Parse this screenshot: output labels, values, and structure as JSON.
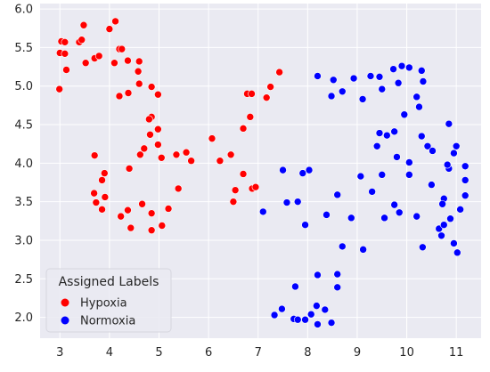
{
  "chart_data": {
    "type": "scatter",
    "xlim": [
      2.6,
      11.5
    ],
    "ylim": [
      1.73,
      6.07
    ],
    "x_ticks": [
      3,
      4,
      5,
      6,
      7,
      8,
      9,
      10,
      11
    ],
    "y_ticks": [
      2.0,
      2.5,
      3.0,
      3.5,
      4.0,
      4.5,
      5.0,
      5.5,
      6.0
    ],
    "grid": true,
    "background": "#EAEAF2",
    "grid_color": "#FFFFFF",
    "legend": {
      "title": "Assigned Labels",
      "placement": "lower-left"
    },
    "series": [
      {
        "name": "Hypoxia",
        "color": "#FF0000",
        "points": [
          [
            3.0,
            5.43
          ],
          [
            3.03,
            5.58
          ],
          [
            3.1,
            5.57
          ],
          [
            3.1,
            5.42
          ],
          [
            3.13,
            5.21
          ],
          [
            2.99,
            4.96
          ],
          [
            3.39,
            5.57
          ],
          [
            3.44,
            5.6
          ],
          [
            3.48,
            5.79
          ],
          [
            3.52,
            5.3
          ],
          [
            3.7,
            5.36
          ],
          [
            3.79,
            5.39
          ],
          [
            4.0,
            5.74
          ],
          [
            4.12,
            5.84
          ],
          [
            4.1,
            5.3
          ],
          [
            4.2,
            5.48
          ],
          [
            4.25,
            5.48
          ],
          [
            4.37,
            5.33
          ],
          [
            4.6,
            5.32
          ],
          [
            4.58,
            5.19
          ],
          [
            4.2,
            4.87
          ],
          [
            4.38,
            4.91
          ],
          [
            4.6,
            5.03
          ],
          [
            4.85,
            4.99
          ],
          [
            4.98,
            4.89
          ],
          [
            4.85,
            4.6
          ],
          [
            4.8,
            4.57
          ],
          [
            4.98,
            4.44
          ],
          [
            4.82,
            4.37
          ],
          [
            4.7,
            4.19
          ],
          [
            4.62,
            4.11
          ],
          [
            4.98,
            4.24
          ],
          [
            5.05,
            4.07
          ],
          [
            5.35,
            4.11
          ],
          [
            5.55,
            4.14
          ],
          [
            5.65,
            4.03
          ],
          [
            4.4,
            3.93
          ],
          [
            3.7,
            4.1
          ],
          [
            3.9,
            3.87
          ],
          [
            3.85,
            3.78
          ],
          [
            4.66,
            3.47
          ],
          [
            3.69,
            3.61
          ],
          [
            3.73,
            3.49
          ],
          [
            3.91,
            3.56
          ],
          [
            3.85,
            3.4
          ],
          [
            4.23,
            3.31
          ],
          [
            4.37,
            3.39
          ],
          [
            4.43,
            3.16
          ],
          [
            4.85,
            3.35
          ],
          [
            4.85,
            3.13
          ],
          [
            5.06,
            3.19
          ],
          [
            5.19,
            3.41
          ],
          [
            5.39,
            3.67
          ],
          [
            6.07,
            4.32
          ],
          [
            6.23,
            4.03
          ],
          [
            6.45,
            4.11
          ],
          [
            6.54,
            3.65
          ],
          [
            6.5,
            3.5
          ],
          [
            6.7,
            3.86
          ],
          [
            6.7,
            4.45
          ],
          [
            6.84,
            4.6
          ],
          [
            6.78,
            4.9
          ],
          [
            6.87,
            4.9
          ],
          [
            6.88,
            3.67
          ],
          [
            6.95,
            3.69
          ],
          [
            7.17,
            4.85
          ],
          [
            7.25,
            4.99
          ],
          [
            7.43,
            5.18
          ]
        ]
      },
      {
        "name": "Normoxia",
        "color": "#0000FF",
        "points": [
          [
            7.1,
            3.37
          ],
          [
            7.5,
            3.91
          ],
          [
            7.58,
            3.49
          ],
          [
            7.8,
            3.5
          ],
          [
            7.9,
            3.87
          ],
          [
            8.03,
            3.91
          ],
          [
            7.95,
            3.2
          ],
          [
            8.2,
            5.13
          ],
          [
            8.48,
            4.87
          ],
          [
            8.52,
            5.08
          ],
          [
            8.7,
            4.93
          ],
          [
            8.93,
            5.1
          ],
          [
            9.11,
            4.83
          ],
          [
            9.27,
            5.13
          ],
          [
            9.45,
            5.12
          ],
          [
            9.5,
            4.96
          ],
          [
            9.73,
            5.22
          ],
          [
            9.9,
            5.26
          ],
          [
            9.83,
            5.04
          ],
          [
            10.05,
            5.24
          ],
          [
            10.3,
            5.2
          ],
          [
            10.33,
            5.06
          ],
          [
            10.2,
            4.86
          ],
          [
            10.25,
            4.73
          ],
          [
            9.95,
            4.63
          ],
          [
            9.4,
            4.22
          ],
          [
            9.45,
            4.39
          ],
          [
            9.6,
            4.36
          ],
          [
            9.75,
            4.41
          ],
          [
            9.8,
            4.08
          ],
          [
            10.3,
            4.35
          ],
          [
            10.42,
            4.22
          ],
          [
            10.52,
            4.16
          ],
          [
            10.05,
            4.01
          ],
          [
            9.5,
            3.85
          ],
          [
            9.07,
            3.83
          ],
          [
            8.6,
            3.59
          ],
          [
            9.3,
            3.63
          ],
          [
            8.88,
            3.29
          ],
          [
            9.55,
            3.29
          ],
          [
            9.75,
            3.46
          ],
          [
            9.85,
            3.36
          ],
          [
            10.05,
            3.85
          ],
          [
            10.2,
            3.31
          ],
          [
            10.5,
            3.72
          ],
          [
            10.75,
            3.54
          ],
          [
            10.72,
            3.47
          ],
          [
            10.85,
            3.93
          ],
          [
            10.82,
            3.98
          ],
          [
            10.85,
            4.51
          ],
          [
            11.0,
            4.22
          ],
          [
            10.95,
            4.13
          ],
          [
            11.18,
            3.96
          ],
          [
            11.18,
            3.78
          ],
          [
            11.18,
            3.58
          ],
          [
            11.08,
            3.4
          ],
          [
            10.88,
            3.28
          ],
          [
            10.65,
            3.15
          ],
          [
            10.7,
            3.06
          ],
          [
            10.75,
            3.2
          ],
          [
            10.32,
            2.91
          ],
          [
            10.95,
            2.96
          ],
          [
            11.02,
            2.84
          ],
          [
            8.7,
            2.92
          ],
          [
            9.12,
            2.88
          ],
          [
            8.38,
            3.33
          ],
          [
            8.2,
            2.55
          ],
          [
            8.6,
            2.56
          ],
          [
            8.6,
            2.39
          ],
          [
            7.75,
            2.4
          ],
          [
            7.48,
            2.11
          ],
          [
            7.33,
            2.03
          ],
          [
            7.72,
            1.98
          ],
          [
            7.8,
            1.97
          ],
          [
            7.95,
            1.97
          ],
          [
            8.07,
            2.04
          ],
          [
            8.18,
            2.15
          ],
          [
            8.35,
            2.1
          ],
          [
            8.2,
            1.91
          ],
          [
            8.48,
            1.93
          ]
        ]
      }
    ]
  }
}
